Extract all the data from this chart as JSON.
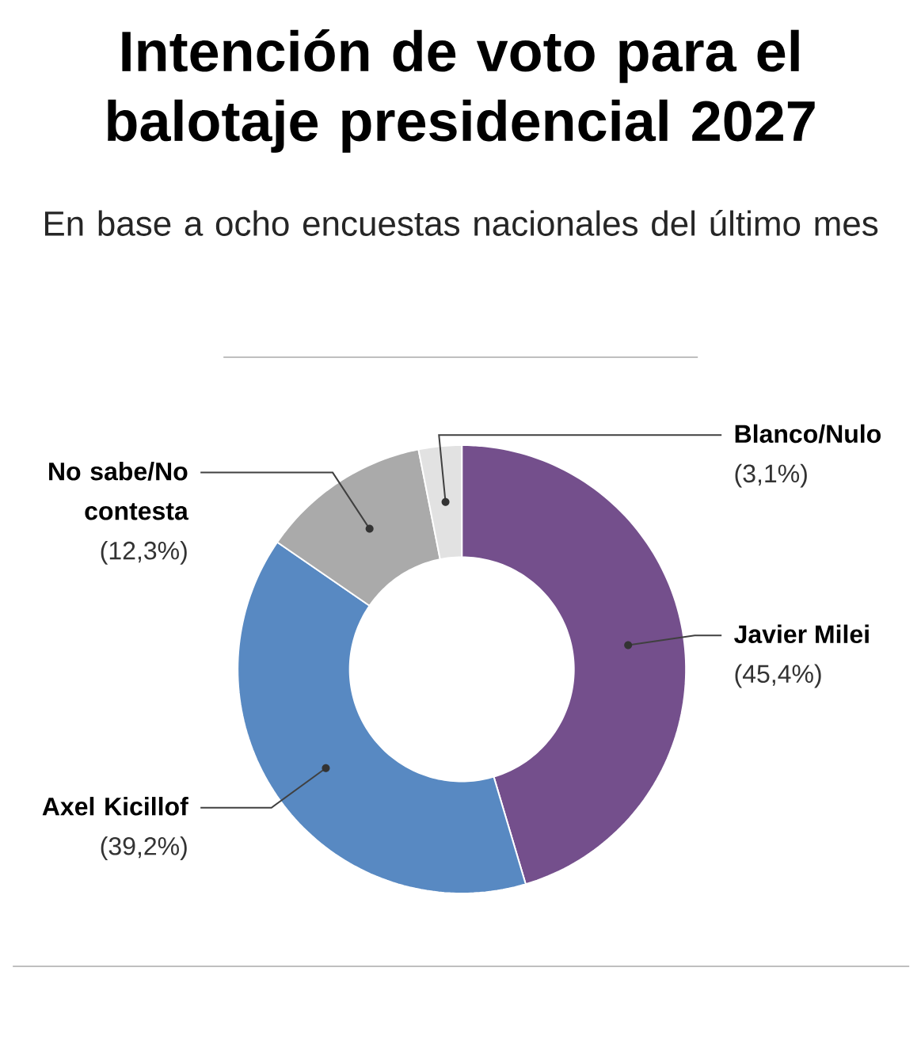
{
  "chart_data": {
    "type": "donut",
    "title": "Intención de voto para el balotaje presidencial 2027",
    "subtitle": "En base a ocho encuestas nacionales del último mes",
    "categories": [
      "Javier Milei",
      "Axel Kicillof",
      "No sabe/No contesta",
      "Blanco/Nulo"
    ],
    "values": [
      45.4,
      39.2,
      12.3,
      3.1
    ],
    "colors": [
      "#744f8c",
      "#5889c2",
      "#aaaaaa",
      "#e2e2e2"
    ],
    "value_labels": [
      "(45,4%)",
      "(39,2%)",
      "(12,3%)",
      "(3,1%)"
    ]
  }
}
